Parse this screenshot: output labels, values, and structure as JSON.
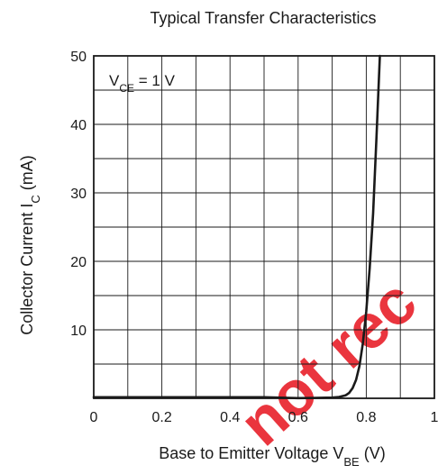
{
  "chart_data": {
    "type": "line",
    "title": "Typical Transfer Characteristics",
    "annotation": {
      "main": "V",
      "sub": "CE",
      "rest": " = 1 V"
    },
    "ylabel": {
      "main": "Collector Current   I",
      "sub": "C",
      "rest": "   (mA)"
    },
    "xlabel": {
      "main": "Base to Emitter Voltage    V",
      "sub": "BE",
      "rest": "  (V)"
    },
    "xlim": [
      0,
      1
    ],
    "ylim": [
      0,
      50
    ],
    "x_ticks": [
      0,
      0.2,
      0.4,
      0.6,
      0.8,
      1
    ],
    "x_tick_labels": [
      "0",
      "0.2",
      "0.4",
      "0.6",
      "0.8",
      "1"
    ],
    "y_ticks": [
      10,
      20,
      30,
      40,
      50
    ],
    "y_tick_labels": [
      "10",
      "20",
      "30",
      "40",
      "50"
    ],
    "grid": true,
    "line_color": "#1a1a1a",
    "watermark": "not rec",
    "watermark_color": "#e8202a",
    "series": [
      {
        "x": [
          0,
          0.5,
          0.6,
          0.65,
          0.7,
          0.72,
          0.74,
          0.75,
          0.76,
          0.77,
          0.78,
          0.79,
          0.8,
          0.81,
          0.82,
          0.83,
          0.84
        ],
        "y": [
          0,
          0,
          0.02,
          0.05,
          0.1,
          0.2,
          0.45,
          0.8,
          1.5,
          2.7,
          4.7,
          8,
          12.7,
          19,
          27,
          38,
          50
        ]
      }
    ]
  }
}
